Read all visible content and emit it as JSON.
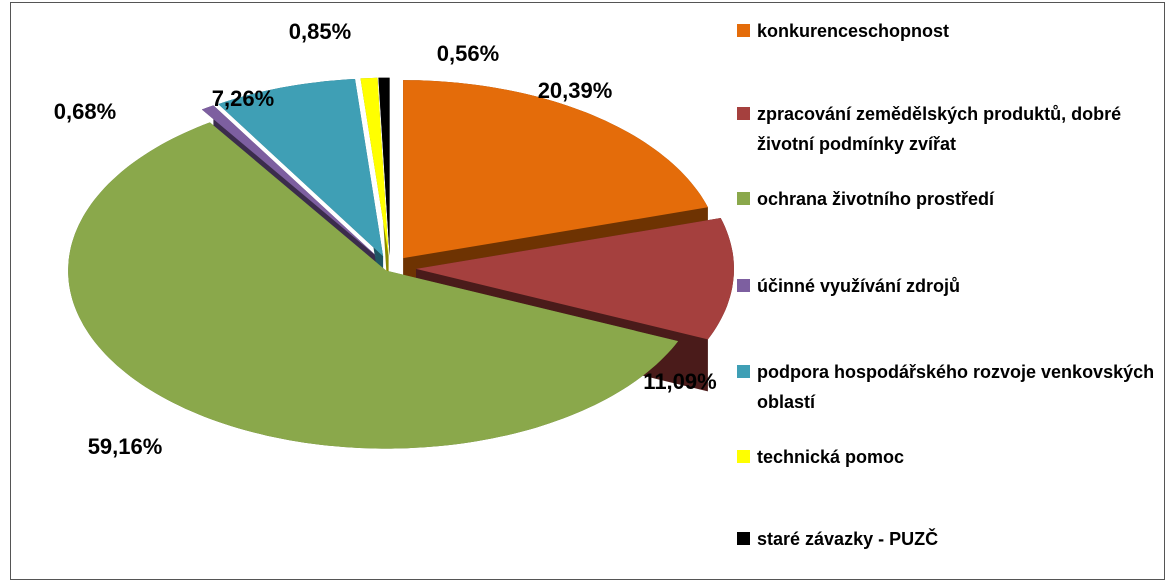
{
  "chart_data": {
    "type": "pie3d",
    "categories": [
      "konkurenceschopnost",
      "zpracování zemědělských produktů, dobré životní podmínky zvířat",
      "ochrana životního prostředí",
      "účinné využívání zdrojů",
      "podpora hospodářského rozvoje venkovských oblastí",
      "technická pomoc",
      "staré závazky - PUZČ"
    ],
    "values": [
      20.39,
      11.09,
      59.16,
      0.68,
      7.26,
      0.85,
      0.56
    ],
    "value_labels": [
      "20,39%",
      "11,09%",
      "59,16%",
      "0,68%",
      "7,26%",
      "0,85%",
      "0,56%"
    ],
    "colors": [
      "#e46c0a",
      "#a5403e",
      "#8aa84b",
      "#7d5fa0",
      "#3f9fb5",
      "#ffff00",
      "#000000"
    ],
    "side_colors": [
      "#6e3302",
      "#4a1b1a",
      "#55692b",
      "#3b2c4c",
      "#1f5663",
      "#8a8a00",
      "#000000"
    ],
    "legend": "right"
  }
}
